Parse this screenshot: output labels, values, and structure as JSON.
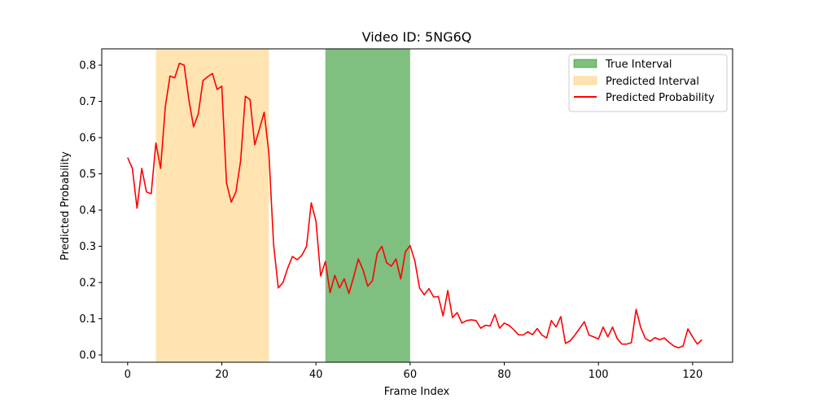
{
  "chart_data": {
    "type": "line",
    "title": "Video ID: 5NG6Q",
    "xlabel": "Frame Index",
    "ylabel": "Predicted Probability",
    "xlim": [
      -5.5,
      128.5
    ],
    "ylim": [
      -0.02,
      0.845
    ],
    "xticks": [
      0,
      20,
      40,
      60,
      80,
      100,
      120
    ],
    "yticks": [
      0.0,
      0.1,
      0.2,
      0.3,
      0.4,
      0.5,
      0.6,
      0.7,
      0.8
    ],
    "xtick_labels": [
      "0",
      "20",
      "40",
      "60",
      "80",
      "100",
      "120"
    ],
    "ytick_labels": [
      "0.0",
      "0.1",
      "0.2",
      "0.3",
      "0.4",
      "0.5",
      "0.6",
      "0.7",
      "0.8"
    ],
    "grid": false,
    "legend_position": "top-right",
    "true_interval": {
      "name": "True Interval",
      "start": 42,
      "end": 60,
      "color": "#008000"
    },
    "predicted_interval": {
      "name": "Predicted Interval",
      "start": 6,
      "end": 30,
      "color": "#ffa500"
    },
    "series": [
      {
        "name": "Predicted Probability",
        "color": "#ff0000",
        "x": [
          0,
          1,
          2,
          3,
          4,
          5,
          6,
          7,
          8,
          9,
          10,
          11,
          12,
          13,
          14,
          15,
          16,
          17,
          18,
          19,
          20,
          21,
          22,
          23,
          24,
          25,
          26,
          27,
          28,
          29,
          30,
          31,
          32,
          33,
          34,
          35,
          36,
          37,
          38,
          39,
          40,
          41,
          42,
          43,
          44,
          45,
          46,
          47,
          48,
          49,
          50,
          51,
          52,
          53,
          54,
          55,
          56,
          57,
          58,
          59,
          60,
          61,
          62,
          63,
          64,
          65,
          66,
          67,
          68,
          69,
          70,
          71,
          72,
          73,
          74,
          75,
          76,
          77,
          78,
          79,
          80,
          81,
          82,
          83,
          84,
          85,
          86,
          87,
          88,
          89,
          90,
          91,
          92,
          93,
          94,
          95,
          96,
          97,
          98,
          99,
          100,
          101,
          102,
          103,
          104,
          105,
          106,
          107,
          108,
          109,
          110,
          111,
          112,
          113,
          114,
          115,
          116,
          117,
          118,
          119,
          120,
          121,
          122
        ],
        "values": [
          0.545,
          0.515,
          0.405,
          0.515,
          0.45,
          0.445,
          0.585,
          0.515,
          0.685,
          0.77,
          0.765,
          0.805,
          0.8,
          0.705,
          0.63,
          0.665,
          0.757,
          0.768,
          0.777,
          0.733,
          0.742,
          0.475,
          0.422,
          0.45,
          0.536,
          0.714,
          0.705,
          0.58,
          0.624,
          0.67,
          0.557,
          0.305,
          0.185,
          0.2,
          0.24,
          0.272,
          0.263,
          0.275,
          0.3,
          0.42,
          0.37,
          0.218,
          0.258,
          0.172,
          0.22,
          0.185,
          0.21,
          0.17,
          0.215,
          0.265,
          0.235,
          0.19,
          0.205,
          0.28,
          0.3,
          0.255,
          0.245,
          0.265,
          0.21,
          0.285,
          0.302,
          0.26,
          0.185,
          0.166,
          0.183,
          0.16,
          0.161,
          0.108,
          0.178,
          0.103,
          0.117,
          0.088,
          0.095,
          0.097,
          0.095,
          0.074,
          0.082,
          0.08,
          0.112,
          0.074,
          0.088,
          0.082,
          0.07,
          0.056,
          0.055,
          0.064,
          0.056,
          0.073,
          0.055,
          0.047,
          0.095,
          0.077,
          0.106,
          0.032,
          0.039,
          0.055,
          0.073,
          0.092,
          0.055,
          0.05,
          0.044,
          0.077,
          0.05,
          0.077,
          0.045,
          0.03,
          0.03,
          0.034,
          0.126,
          0.075,
          0.045,
          0.038,
          0.048,
          0.042,
          0.047,
          0.035,
          0.025,
          0.02,
          0.025,
          0.072,
          0.05,
          0.03,
          0.042
        ]
      }
    ]
  }
}
